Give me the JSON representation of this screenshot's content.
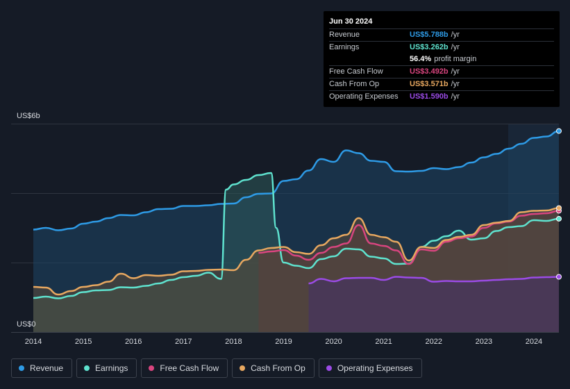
{
  "tooltip": {
    "date": "Jun 30 2024",
    "rows": [
      {
        "label": "Revenue",
        "value": "US$5.788b",
        "unit": "/yr",
        "color": "#2e9be6"
      },
      {
        "label": "Earnings",
        "value": "US$3.262b",
        "unit": "/yr",
        "color": "#5fe3cf"
      },
      {
        "label": "",
        "value": "56.4%",
        "unit": "profit margin",
        "color": "#ffffff"
      },
      {
        "label": "Free Cash Flow",
        "value": "US$3.492b",
        "unit": "/yr",
        "color": "#d9457f"
      },
      {
        "label": "Cash From Op",
        "value": "US$3.571b",
        "unit": "/yr",
        "color": "#e8a860"
      },
      {
        "label": "Operating Expenses",
        "value": "US$1.590b",
        "unit": "/yr",
        "color": "#9b4be6"
      }
    ]
  },
  "legend": [
    {
      "label": "Revenue",
      "color": "#2e9be6"
    },
    {
      "label": "Earnings",
      "color": "#5fe3cf"
    },
    {
      "label": "Free Cash Flow",
      "color": "#d9457f"
    },
    {
      "label": "Cash From Op",
      "color": "#e8a860"
    },
    {
      "label": "Operating Expenses",
      "color": "#9b4be6"
    }
  ],
  "chart_data": {
    "type": "area",
    "y_top_label": "US$6b",
    "y_bottom_label": "US$0",
    "ylim": [
      0,
      6
    ],
    "xlim": [
      2014.0,
      2024.5
    ],
    "x_ticks": [
      "2014",
      "2015",
      "2016",
      "2017",
      "2018",
      "2019",
      "2020",
      "2021",
      "2022",
      "2023",
      "2024"
    ],
    "gridlines": [
      0,
      2,
      4,
      6
    ],
    "forecast_shade_from": 2023.5,
    "series": [
      {
        "name": "Revenue",
        "color": "#2e9be6",
        "x": [
          2014.0,
          2014.25,
          2014.5,
          2014.75,
          2015.0,
          2015.25,
          2015.5,
          2015.75,
          2016.0,
          2016.25,
          2016.5,
          2016.75,
          2017.0,
          2017.25,
          2017.5,
          2017.75,
          2018.0,
          2018.25,
          2018.5,
          2018.75,
          2019.0,
          2019.25,
          2019.5,
          2019.75,
          2020.0,
          2020.25,
          2020.5,
          2020.75,
          2021.0,
          2021.25,
          2021.5,
          2021.75,
          2022.0,
          2022.25,
          2022.5,
          2022.75,
          2023.0,
          2023.25,
          2023.5,
          2023.75,
          2024.0,
          2024.25,
          2024.5
        ],
        "values": [
          2.95,
          3.0,
          2.93,
          2.98,
          3.12,
          3.18,
          3.28,
          3.37,
          3.36,
          3.45,
          3.54,
          3.55,
          3.63,
          3.63,
          3.65,
          3.69,
          3.7,
          3.88,
          3.98,
          3.99,
          4.35,
          4.4,
          4.65,
          4.98,
          4.9,
          5.23,
          5.15,
          4.93,
          4.9,
          4.63,
          4.62,
          4.64,
          4.72,
          4.69,
          4.75,
          4.88,
          5.03,
          5.13,
          5.28,
          5.42,
          5.59,
          5.63,
          5.788
        ]
      },
      {
        "name": "Earnings",
        "color": "#5fe3cf",
        "x": [
          2014.0,
          2014.25,
          2014.5,
          2014.75,
          2015.0,
          2015.25,
          2015.5,
          2015.75,
          2016.0,
          2016.25,
          2016.5,
          2016.75,
          2017.0,
          2017.25,
          2017.5,
          2017.75,
          2017.85,
          2018.0,
          2018.25,
          2018.5,
          2018.75,
          2018.85,
          2019.0,
          2019.25,
          2019.5,
          2019.75,
          2020.0,
          2020.25,
          2020.5,
          2020.75,
          2021.0,
          2021.25,
          2021.5,
          2021.75,
          2022.0,
          2022.25,
          2022.5,
          2022.75,
          2023.0,
          2023.25,
          2023.5,
          2023.75,
          2024.0,
          2024.25,
          2024.5
        ],
        "values": [
          0.98,
          1.02,
          0.97,
          1.04,
          1.15,
          1.2,
          1.21,
          1.29,
          1.28,
          1.33,
          1.4,
          1.5,
          1.58,
          1.62,
          1.71,
          1.53,
          4.1,
          4.25,
          4.38,
          4.52,
          4.58,
          3.0,
          2.0,
          1.91,
          1.84,
          2.1,
          2.18,
          2.4,
          2.38,
          2.17,
          2.12,
          1.96,
          1.97,
          2.45,
          2.63,
          2.76,
          2.92,
          2.66,
          2.7,
          2.91,
          3.02,
          3.05,
          3.22,
          3.2,
          3.262
        ]
      },
      {
        "name": "Free Cash Flow",
        "color": "#d9457f",
        "x": [
          2018.5,
          2018.75,
          2019.0,
          2019.25,
          2019.5,
          2019.75,
          2020.0,
          2020.25,
          2020.5,
          2020.75,
          2021.0,
          2021.25,
          2021.5,
          2021.75,
          2022.0,
          2022.25,
          2022.5,
          2022.75,
          2023.0,
          2023.25,
          2023.5,
          2023.75,
          2024.0,
          2024.25,
          2024.5
        ],
        "values": [
          2.28,
          2.32,
          2.36,
          2.2,
          2.08,
          2.28,
          2.45,
          2.55,
          3.08,
          2.55,
          2.48,
          2.35,
          1.96,
          2.38,
          2.34,
          2.6,
          2.7,
          2.75,
          3.0,
          3.13,
          3.18,
          3.35,
          3.4,
          3.42,
          3.492
        ]
      },
      {
        "name": "Cash From Op",
        "color": "#e8a860",
        "x": [
          2014.0,
          2014.25,
          2014.5,
          2014.75,
          2015.0,
          2015.25,
          2015.5,
          2015.75,
          2016.0,
          2016.25,
          2016.5,
          2016.75,
          2017.0,
          2017.25,
          2017.5,
          2017.75,
          2018.0,
          2018.25,
          2018.5,
          2018.75,
          2019.0,
          2019.25,
          2019.5,
          2019.75,
          2020.0,
          2020.25,
          2020.5,
          2020.75,
          2021.0,
          2021.25,
          2021.5,
          2021.75,
          2022.0,
          2022.25,
          2022.5,
          2022.75,
          2023.0,
          2023.25,
          2023.5,
          2023.75,
          2024.0,
          2024.25,
          2024.5
        ],
        "values": [
          1.3,
          1.28,
          1.08,
          1.18,
          1.3,
          1.35,
          1.45,
          1.68,
          1.55,
          1.64,
          1.62,
          1.65,
          1.75,
          1.76,
          1.79,
          1.8,
          1.78,
          2.08,
          2.35,
          2.42,
          2.45,
          2.3,
          2.25,
          2.5,
          2.7,
          2.8,
          3.28,
          2.8,
          2.73,
          2.6,
          2.06,
          2.45,
          2.42,
          2.65,
          2.74,
          2.8,
          3.08,
          3.15,
          3.2,
          3.45,
          3.49,
          3.5,
          3.571
        ]
      },
      {
        "name": "Operating Expenses",
        "color": "#9b4be6",
        "x": [
          2019.5,
          2019.75,
          2020.0,
          2020.25,
          2020.5,
          2020.75,
          2021.0,
          2021.25,
          2021.5,
          2021.75,
          2022.0,
          2022.25,
          2022.5,
          2022.75,
          2023.0,
          2023.25,
          2023.5,
          2023.75,
          2024.0,
          2024.25,
          2024.5
        ],
        "values": [
          1.4,
          1.53,
          1.46,
          1.55,
          1.56,
          1.56,
          1.5,
          1.59,
          1.57,
          1.56,
          1.45,
          1.47,
          1.46,
          1.46,
          1.48,
          1.5,
          1.52,
          1.53,
          1.57,
          1.58,
          1.59
        ]
      }
    ]
  }
}
